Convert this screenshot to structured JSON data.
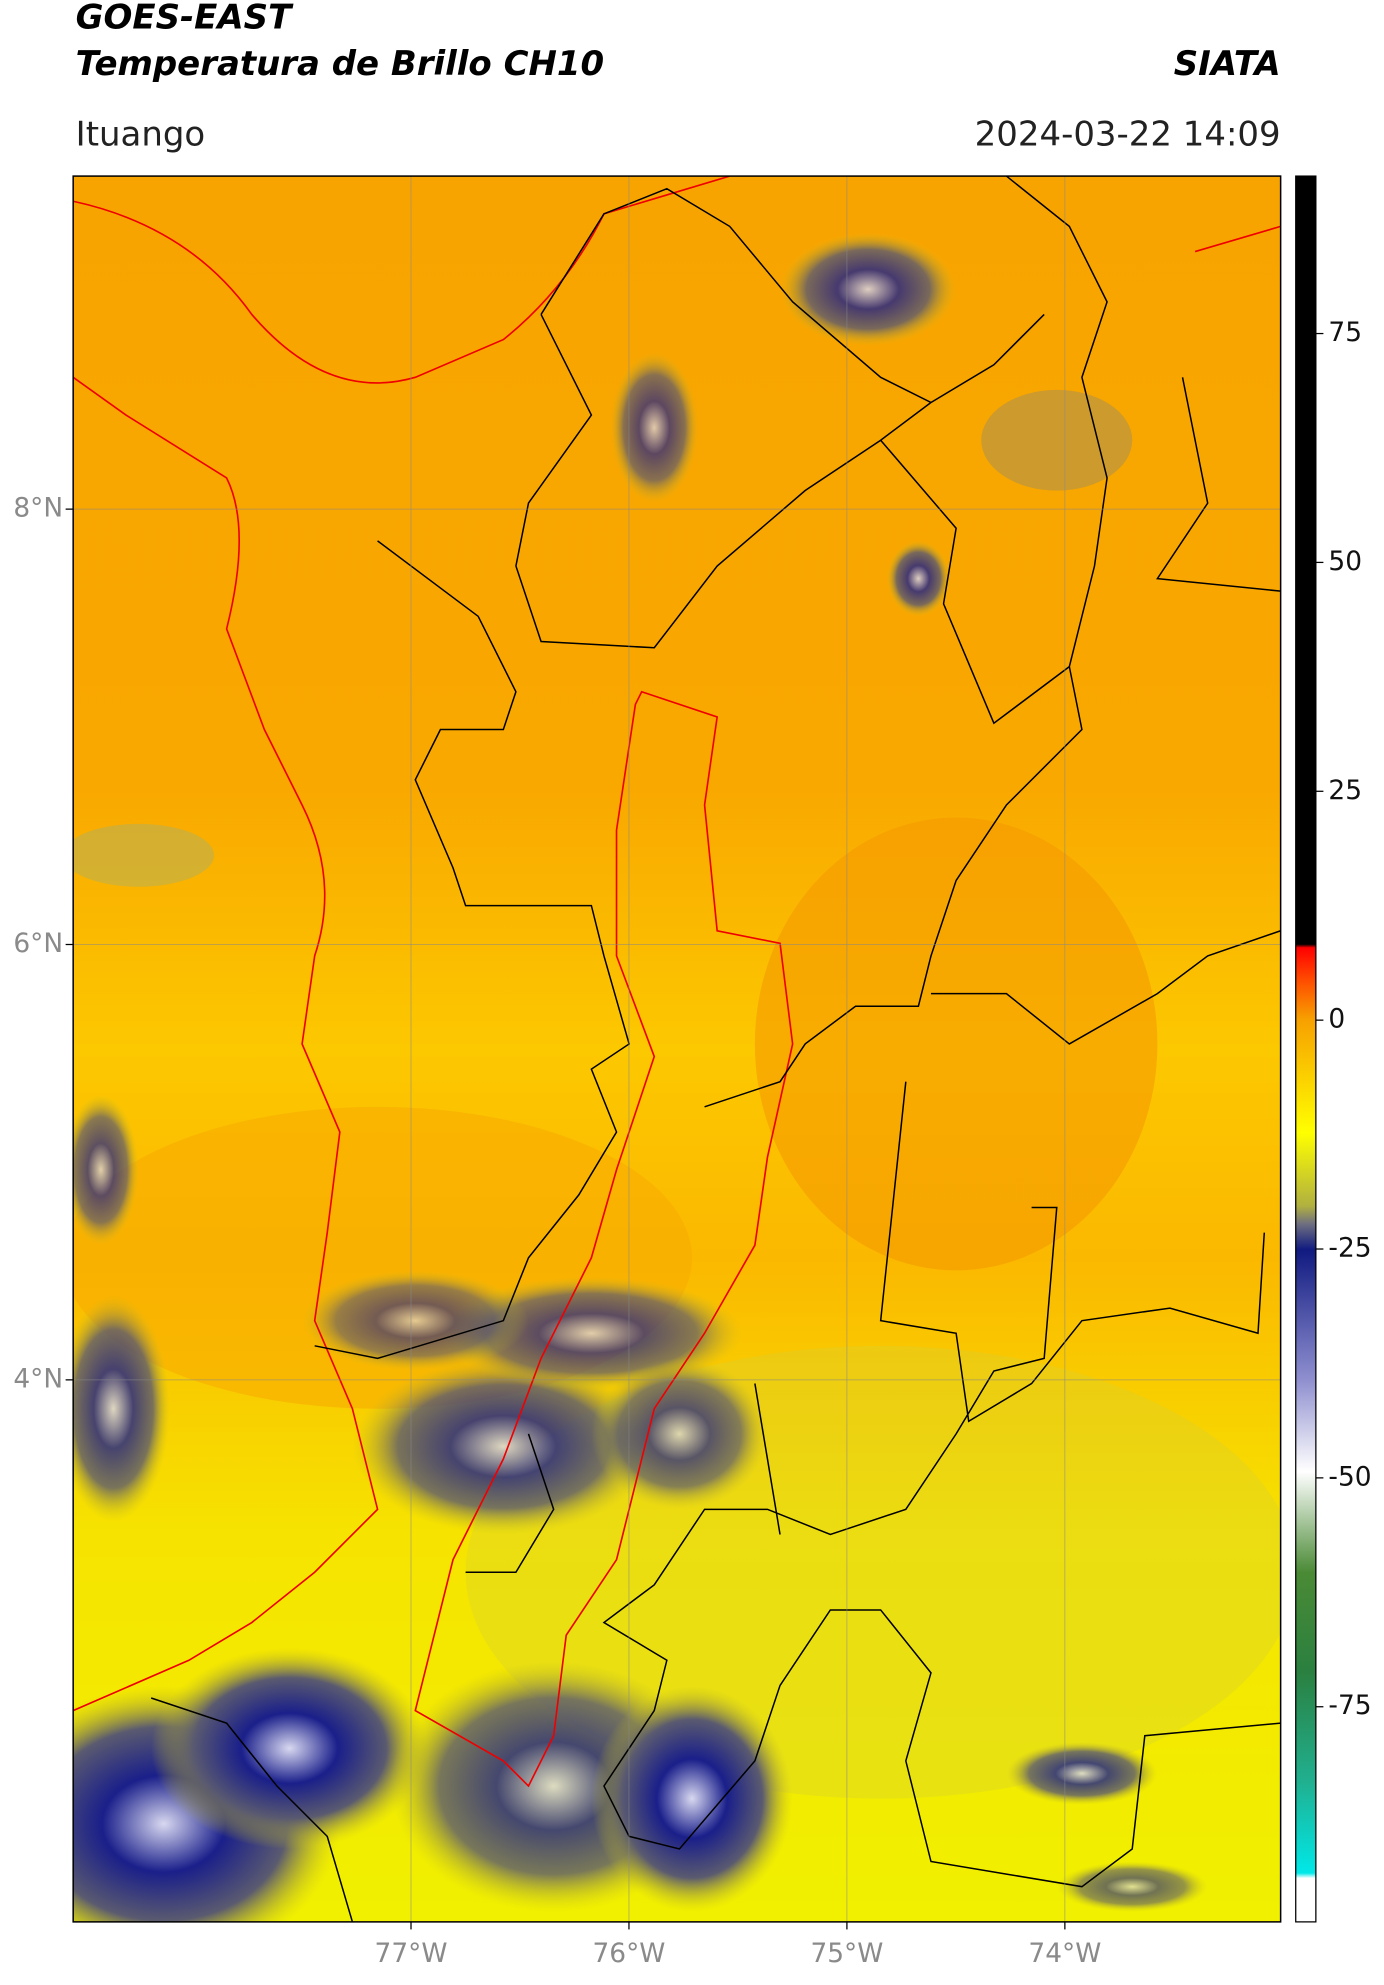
{
  "header": {
    "title": "GOES-EAST",
    "subtitle": "Temperatura de Brillo CH10",
    "agency": "SIATA",
    "location": "Ituango",
    "datetime": "2024-03-22 14:09"
  },
  "map": {
    "xlim": [
      -78.55,
      -73.01
    ],
    "ylim": [
      1.51,
      9.53
    ],
    "xticks": [
      {
        "value": -77,
        "label": "77°W"
      },
      {
        "value": -76,
        "label": "76°W"
      },
      {
        "value": -75,
        "label": "75°W"
      },
      {
        "value": -74,
        "label": "74°W"
      }
    ],
    "yticks": [
      {
        "value": 4,
        "label": "4°N"
      },
      {
        "value": 6,
        "label": "6°N"
      },
      {
        "value": 8,
        "label": "8°N"
      }
    ],
    "grid": true
  },
  "colorbar": {
    "lim": [
      -98.5,
      92.2
    ],
    "ticks": [
      -75,
      -50,
      -25,
      0,
      25,
      50,
      75
    ]
  }
}
